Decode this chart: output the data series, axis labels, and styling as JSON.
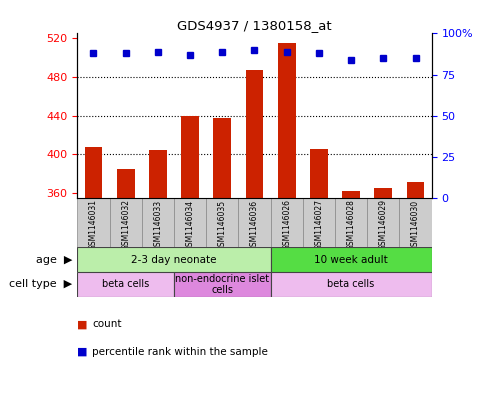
{
  "title": "GDS4937 / 1380158_at",
  "samples": [
    "GSM1146031",
    "GSM1146032",
    "GSM1146033",
    "GSM1146034",
    "GSM1146035",
    "GSM1146036",
    "GSM1146026",
    "GSM1146027",
    "GSM1146028",
    "GSM1146029",
    "GSM1146030"
  ],
  "counts": [
    408,
    385,
    405,
    440,
    438,
    487,
    515,
    406,
    362,
    365,
    372
  ],
  "percentiles": [
    88,
    88,
    89,
    87,
    89,
    90,
    89,
    88,
    84,
    85,
    85
  ],
  "ylim_left": [
    355,
    525
  ],
  "ylim_right": [
    0,
    100
  ],
  "yticks_left": [
    360,
    400,
    440,
    480,
    520
  ],
  "yticks_right": [
    0,
    25,
    50,
    75,
    100
  ],
  "ytick_labels_right": [
    "0",
    "25",
    "50",
    "75",
    "100%"
  ],
  "grid_values": [
    400,
    440,
    480
  ],
  "bar_color": "#cc2200",
  "dot_color": "#0000cc",
  "bar_width": 0.55,
  "age_groups": [
    {
      "label": "2-3 day neonate",
      "start": 0,
      "end": 6,
      "color": "#bbeeaa"
    },
    {
      "label": "10 week adult",
      "start": 6,
      "end": 11,
      "color": "#55dd44"
    }
  ],
  "cell_type_groups": [
    {
      "label": "beta cells",
      "start": 0,
      "end": 3,
      "color": "#eebcee"
    },
    {
      "label": "non-endocrine islet\ncells",
      "start": 3,
      "end": 6,
      "color": "#dd88dd"
    },
    {
      "label": "beta cells",
      "start": 6,
      "end": 11,
      "color": "#eebcee"
    }
  ],
  "legend_count_color": "#cc2200",
  "legend_dot_color": "#0000cc",
  "label_area_color": "#cccccc"
}
